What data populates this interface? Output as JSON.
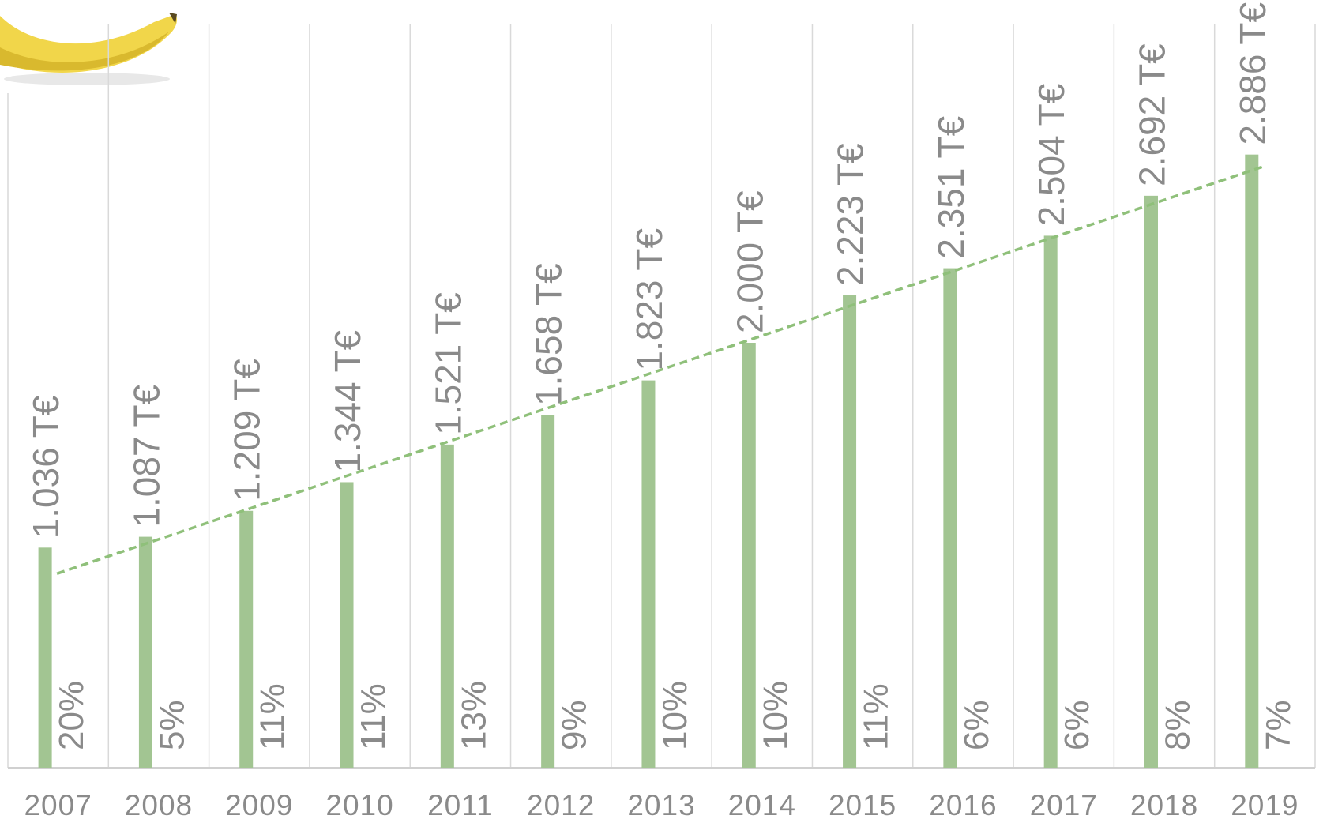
{
  "chart_data": {
    "type": "bar",
    "categories": [
      "2007",
      "2008",
      "2009",
      "2010",
      "2011",
      "2012",
      "2013",
      "2014",
      "2015",
      "2016",
      "2017",
      "2018",
      "2019"
    ],
    "values": [
      1036,
      1087,
      1209,
      1344,
      1521,
      1658,
      1823,
      2000,
      2223,
      2351,
      2504,
      2692,
      2886
    ],
    "value_labels": [
      "1.036 T€",
      "1.087 T€",
      "1.209 T€",
      "1.344 T€",
      "1.521 T€",
      "1.658 T€",
      "1.823 T€",
      "2.000 T€",
      "2.223 T€",
      "2.351 T€",
      "2.504 T€",
      "2.692 T€",
      "2.886 T€"
    ],
    "growth_labels": [
      "20%",
      "5%",
      "11%",
      "11%",
      "13%",
      "9%",
      "10%",
      "10%",
      "11%",
      "6%",
      "6%",
      "8%",
      "7%"
    ],
    "color": "#a2c592",
    "trendline": true,
    "trendline_color": "#8fc07a",
    "ylim": [
      0,
      3000
    ]
  }
}
